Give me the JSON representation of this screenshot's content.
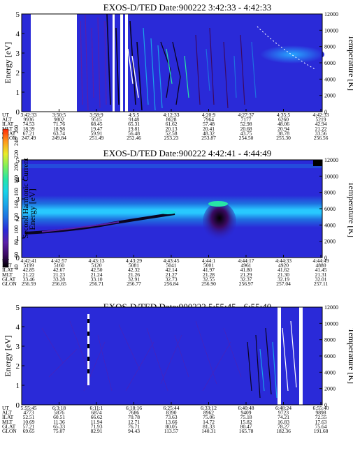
{
  "colors": {
    "background": "#2a2ad8",
    "colorbar": [
      "#000000",
      "#3b0a63",
      "#5a1fa8",
      "#2a2ad8",
      "#1f6fe0",
      "#1aa3e8",
      "#19d4e8",
      "#27e6a6",
      "#7ef05a",
      "#e8ec2a",
      "#ff9a1a",
      "#ff2a0a"
    ],
    "ridge_dark": "#0a0420",
    "ridge_light": "#ffffff",
    "band_cyan": "#28c8ff"
  },
  "colorbar": {
    "title": "Second Harmonic Current",
    "ticks": [
      "40",
      "60",
      "80",
      "100",
      "120",
      "140",
      "160",
      "180",
      "200",
      "220",
      "240",
      "260"
    ]
  },
  "chart_data": [
    {
      "type": "heatmap",
      "title": "EXOS-D/TED Date:900222 3:42:33 - 4:42:33",
      "ylabel": "Energy [eV]",
      "y2label": "Temperature [K]",
      "ylim": [
        0,
        5
      ],
      "y2lim": [
        0,
        12000
      ],
      "yticks": [
        "0",
        "1",
        "2",
        "3",
        "4",
        "5"
      ],
      "y2ticks": [
        "0",
        "2000",
        "4000",
        "6000",
        "8000",
        "10000",
        "12000"
      ],
      "table": {
        "labels": [
          "UT",
          "ALT",
          "ILAT",
          "MLT",
          "GLAT",
          "GLON"
        ],
        "columns": [
          [
            "3:42:33",
            "9936",
            "74.53",
            "18.39",
            "67.21",
            "247.49"
          ],
          [
            "3:50:5",
            "9802",
            "71.76",
            "18.98",
            "63.74",
            "249.84"
          ],
          [
            "3:58:9",
            "9515",
            "68.45",
            "19.47",
            "59.91",
            "251.49"
          ],
          [
            "4:5:5",
            "9148",
            "65.31",
            "19.81",
            "56.48",
            "252.46"
          ],
          [
            "4:12:33",
            "8628",
            "61.62",
            "20.13",
            "52.58",
            "253.23"
          ],
          [
            "4:20:9",
            "7964",
            "57.48",
            "20.41",
            "48.32",
            "253.87"
          ],
          [
            "4:27:37",
            "7177",
            "52.98",
            "20.68",
            "43.75",
            "254.50"
          ],
          [
            "4:35:5",
            "6260",
            "48.06",
            "20.94",
            "38.78",
            "255.30"
          ],
          [
            "4:42:33",
            "5219",
            "42.94",
            "21.22",
            "33.56",
            "256.56"
          ]
        ]
      }
    },
    {
      "type": "heatmap",
      "title": "EXOS-D/TED Date:900222 4:42:41 - 4:44:49",
      "ylabel": "Energy [eV]",
      "y2label": "Temperature [K]",
      "ylim": [
        0,
        5
      ],
      "y2lim": [
        0,
        12000
      ],
      "yticks": [
        "0",
        "1",
        "2",
        "3",
        "4",
        "5"
      ],
      "y2ticks": [
        "0",
        "2000",
        "4000",
        "6000",
        "8000",
        "10000",
        "12000"
      ],
      "table": {
        "labels": [
          "UT",
          "ALT",
          "ILAT",
          "MLT",
          "GLAT",
          "GLON"
        ],
        "columns": [
          [
            "4:42:41",
            "5199",
            "42.85",
            "21.22",
            "33.46",
            "256.59"
          ],
          [
            "4:42:57",
            "5160",
            "42.67",
            "21.23",
            "33.28",
            "256.65"
          ],
          [
            "4:43:13",
            "5120",
            "42.50",
            "21.24",
            "33.10",
            "256.71"
          ],
          [
            "4:43:29",
            "5081",
            "42.32",
            "21.26",
            "32.91",
            "256.77"
          ],
          [
            "4:43:45",
            "5041",
            "42.14",
            "21.27",
            "32.73",
            "256.84"
          ],
          [
            "4:44:1",
            "5001",
            "41.97",
            "21.28",
            "32.55",
            "256.90"
          ],
          [
            "4:44:17",
            "4961",
            "41.80",
            "21.29",
            "32.37",
            "256.97"
          ],
          [
            "4:44:33",
            "4920",
            "41.62",
            "21.30",
            "32.19",
            "257.04"
          ],
          [
            "4:44:49",
            "4880",
            "41.45",
            "21.31",
            "32.01",
            "257.11"
          ]
        ]
      }
    },
    {
      "type": "heatmap",
      "title": "EXOS-D/TED Date:900222 5:55:45 - 6:55:40",
      "ylabel": "Energy [eV]",
      "y2label": "Temperature [K]",
      "ylim": [
        0,
        5
      ],
      "y2lim": [
        0,
        12000
      ],
      "yticks": [
        "0",
        "1",
        "2",
        "3",
        "4",
        "5"
      ],
      "y2ticks": [
        "0",
        "2000",
        "4000",
        "6000",
        "8000",
        "10000",
        "12000"
      ],
      "table": {
        "labels": [
          "UT",
          "ALT",
          "ILAT",
          "MLT",
          "GLAT",
          "GLON"
        ],
        "columns": [
          [
            "5:55:45",
            "4773",
            "52.51",
            "10.69",
            "57.21",
            "69.65"
          ],
          [
            "6:3:18",
            "5876",
            "60.51",
            "11.36",
            "65.33",
            "75.07"
          ],
          [
            "6:11:1",
            "6874",
            "66.62",
            "11.94",
            "71.93",
            "82.91"
          ],
          [
            "6:18:16",
            "7686",
            "70.78",
            "12.71",
            "76.71",
            "94.43"
          ],
          [
            "6:25:44",
            "8390",
            "73.63",
            "13.66",
            "80.05",
            "113.57"
          ],
          [
            "6:33:12",
            "8962",
            "75.06",
            "14.72",
            "81.33",
            "140.31"
          ],
          [
            "6:40:48",
            "9409",
            "75.18",
            "15.82",
            "80.47",
            "165.78"
          ],
          [
            "6:48:24",
            "9723",
            "74.21",
            "16.83",
            "78.27",
            "182.36"
          ],
          [
            "6:55:40",
            "9898",
            "72.55",
            "17.63",
            "75.64",
            "191.68"
          ]
        ]
      }
    }
  ]
}
